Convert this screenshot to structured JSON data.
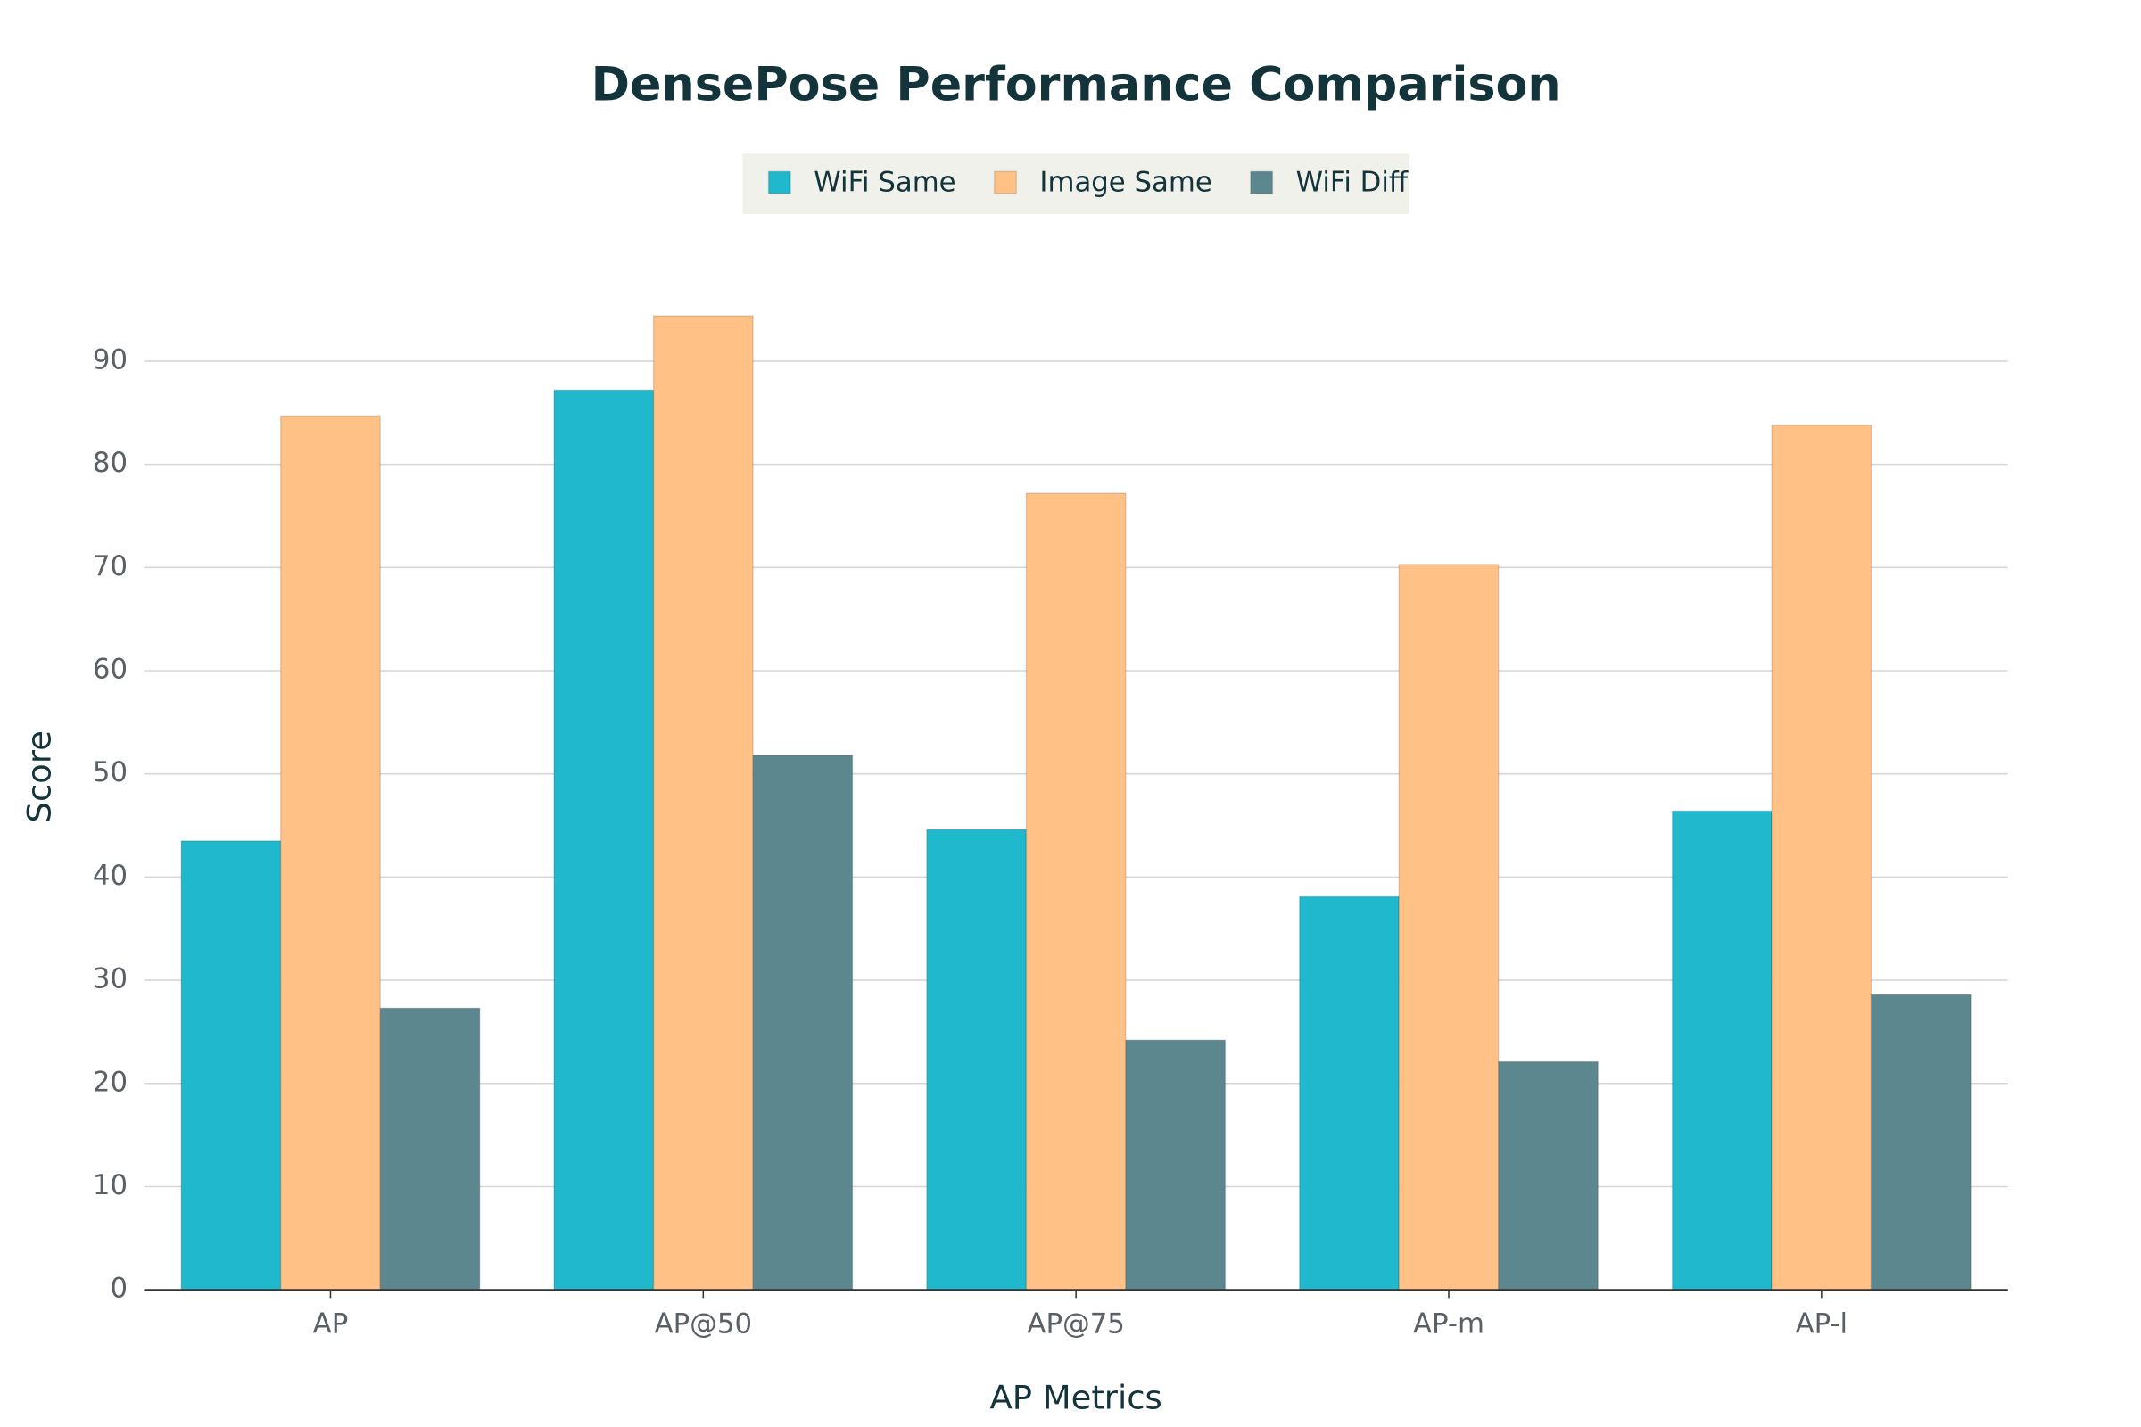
{
  "chart_data": {
    "type": "bar",
    "title": "DensePose Performance Comparison",
    "x_label": "AP Metrics",
    "y_label": "Score",
    "categories": [
      "AP",
      "AP@50",
      "AP@75",
      "AP-m",
      "AP-l"
    ],
    "series": [
      {
        "name": "WiFi Same",
        "color": "#1fb8cd",
        "values": [
          43.5,
          87.2,
          44.6,
          38.1,
          46.4
        ]
      },
      {
        "name": "Image Same",
        "color": "#ffc185",
        "values": [
          84.7,
          94.4,
          77.2,
          70.3,
          83.8
        ]
      },
      {
        "name": "WiFi Diff",
        "color": "#5d878f",
        "values": [
          27.3,
          51.8,
          24.2,
          22.1,
          28.6
        ]
      }
    ],
    "ylim": [
      0,
      100
    ],
    "yticks": [
      0,
      10,
      20,
      30,
      40,
      50,
      60,
      70,
      80,
      90
    ],
    "grid": true,
    "legend": "top"
  }
}
